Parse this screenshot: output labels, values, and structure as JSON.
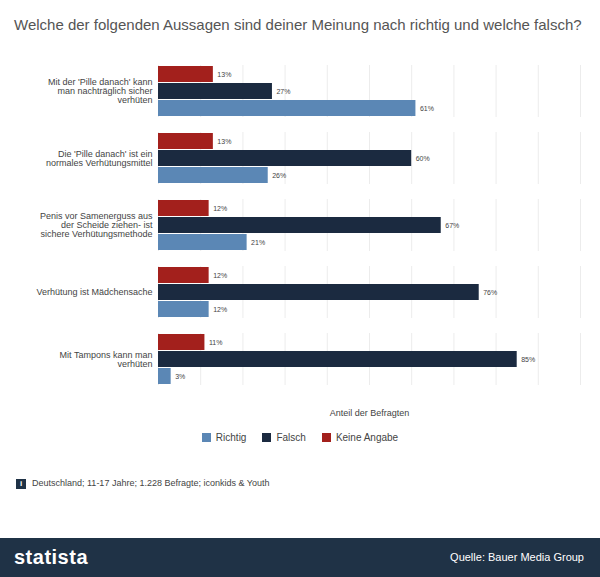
{
  "chart_data": {
    "type": "bar",
    "orientation": "horizontal",
    "title": "Welche der folgenden Aussagen sind deiner Meinung nach richtig und welche falsch?",
    "x_label": "Anteil der Befragten",
    "categories": [
      "Mit der 'Pille danach' kann man nachträglich sicher verhüten",
      "Die 'Pille danach' ist ein normales Verhütungsmittel",
      "Penis vor Samenerguss aus der Scheide ziehen- ist sichere Verhütungsmethode",
      "Verhütung ist Mädchensache",
      "Mit Tampons kann man verhüten"
    ],
    "series": [
      {
        "name": "Richtig",
        "color": "#5b87b5",
        "values": [
          61,
          26,
          21,
          12,
          3
        ],
        "value_labels": [
          "61%",
          "26%",
          "21%",
          "12%",
          "3%"
        ]
      },
      {
        "name": "Falsch",
        "color": "#1b2a40",
        "values": [
          27,
          60,
          67,
          76,
          85
        ],
        "value_labels": [
          "27%",
          "60%",
          "67%",
          "76%",
          "85%"
        ]
      },
      {
        "name": "Keine Angabe",
        "color": "#a3201c",
        "values": [
          13,
          13,
          12,
          12,
          11
        ],
        "value_labels": [
          "13%",
          "13%",
          "12%",
          "12%",
          "11%"
        ]
      }
    ],
    "xlim": [
      0,
      100
    ],
    "xticks": [
      0,
      10,
      20,
      30,
      40,
      50,
      60,
      70,
      80,
      90,
      100
    ],
    "grid": true,
    "tick_labels": "y",
    "data_labels": true,
    "legend": "bottom",
    "note": "Deutschland; 11-17 Jahre; 1.228 Befragte; iconkids & Youth",
    "brand": "statista",
    "source": "Quelle: Bauer Media Group"
  }
}
